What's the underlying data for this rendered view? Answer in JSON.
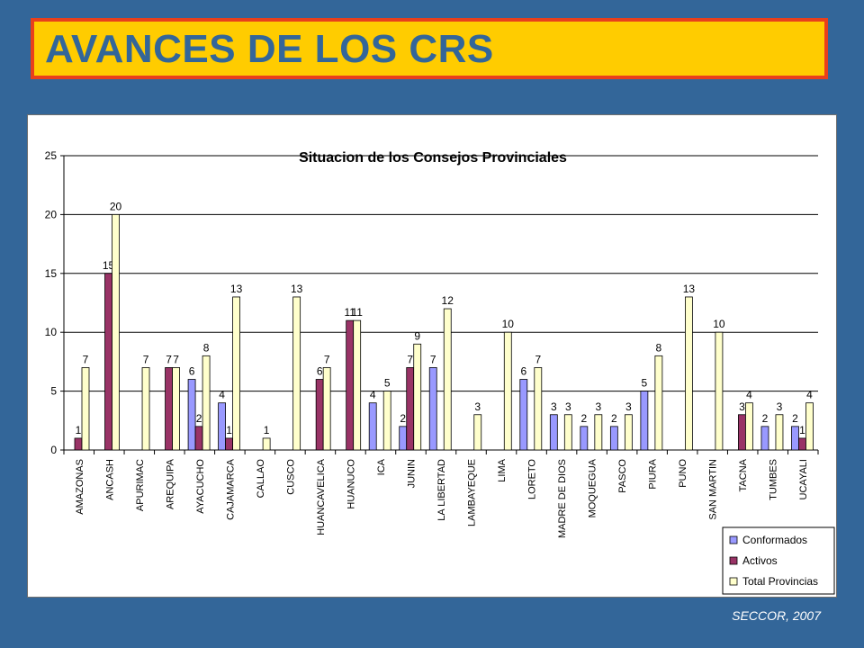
{
  "header": {
    "title": "AVANCES DE LOS CRS"
  },
  "footer": {
    "credit": "SECCOR, 2007"
  },
  "colors": {
    "background": "#336699",
    "banner": "#FFCC00",
    "banner_border": "#E8401C"
  },
  "chart_data": {
    "type": "bar",
    "title": "Situacion de los Consejos Provinciales",
    "xlabel": "",
    "ylabel": "",
    "ylim": [
      0,
      25
    ],
    "yticks": [
      0,
      5,
      10,
      15,
      20,
      25
    ],
    "grid": true,
    "legend_position": "bottom-right",
    "categories": [
      "AMAZONAS",
      "ANCASH",
      "APURIMAC",
      "AREQUIPA",
      "AYACUCHO",
      "CAJAMARCA",
      "CALLAO",
      "CUSCO",
      "HUANCAVELICA",
      "HUANUCO",
      "ICA",
      "JUNIN",
      "LA LIBERTAD",
      "LAMBAYEQUE",
      "LIMA",
      "LORETO",
      "MADRE DE DIOS",
      "MOQUEGUA",
      "PASCO",
      "PIURA",
      "PUNO",
      "SAN MARTIN",
      "TACNA",
      "TUMBES",
      "UCAYALI"
    ],
    "series": [
      {
        "name": "Conformados",
        "color": "#9999FF",
        "values": [
          null,
          null,
          null,
          null,
          6,
          4,
          null,
          null,
          null,
          null,
          4,
          2,
          7,
          null,
          null,
          6,
          3,
          2,
          2,
          5,
          null,
          null,
          null,
          2,
          2
        ]
      },
      {
        "name": "Activos",
        "color": "#993366",
        "values": [
          1,
          15,
          null,
          7,
          2,
          1,
          null,
          null,
          6,
          11,
          null,
          7,
          null,
          null,
          null,
          null,
          null,
          null,
          null,
          null,
          null,
          null,
          3,
          null,
          1
        ]
      },
      {
        "name": "Total Provincias",
        "color": "#FFFFCC",
        "values": [
          7,
          20,
          7,
          7,
          8,
          13,
          1,
          13,
          7,
          11,
          5,
          9,
          12,
          3,
          10,
          7,
          3,
          3,
          3,
          8,
          13,
          10,
          4,
          3,
          4
        ]
      }
    ]
  }
}
